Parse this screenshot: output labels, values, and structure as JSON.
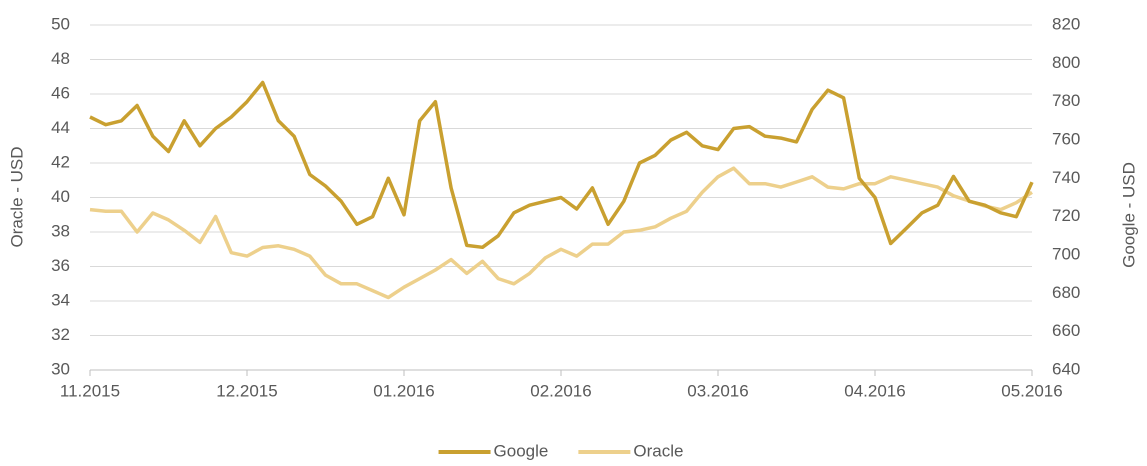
{
  "chart_data": {
    "type": "line",
    "y_label": "Oracle - USD",
    "y2_label": "Google - USD",
    "categories": [
      "11.2015",
      null,
      null,
      null,
      null,
      null,
      null,
      null,
      null,
      null,
      "12.2015",
      null,
      null,
      null,
      null,
      null,
      null,
      null,
      null,
      null,
      "01.2016",
      null,
      null,
      null,
      null,
      null,
      null,
      null,
      null,
      null,
      "02.2016",
      null,
      null,
      null,
      null,
      null,
      null,
      null,
      null,
      null,
      "03.2016",
      null,
      null,
      null,
      null,
      null,
      null,
      null,
      null,
      null,
      "04.2016",
      null,
      null,
      null,
      null,
      null,
      null,
      null,
      null,
      null,
      "05.2016"
    ],
    "series": [
      {
        "name": "Google",
        "color": "#c9a030",
        "axis": "y2",
        "values": [
          772,
          768,
          770,
          778,
          762,
          754,
          770,
          757,
          766,
          772,
          780,
          790,
          770,
          762,
          742,
          736,
          728,
          716,
          720,
          740,
          721,
          770,
          780,
          735,
          705,
          704,
          710,
          722,
          726,
          728,
          730,
          724,
          735,
          716,
          728,
          748,
          752,
          760,
          764,
          757,
          755,
          766,
          767,
          762,
          761,
          759,
          776,
          786,
          782,
          740,
          730,
          706,
          714,
          722,
          726,
          741,
          728,
          726,
          722,
          720,
          738
        ]
      },
      {
        "name": "Oracle",
        "color": "#edd08c",
        "values": [
          39.3,
          39.2,
          39.2,
          38.0,
          39.1,
          38.7,
          38.1,
          37.4,
          38.9,
          36.8,
          36.6,
          37.1,
          37.2,
          37.0,
          36.6,
          35.5,
          35.0,
          35.0,
          34.6,
          34.2,
          34.8,
          35.3,
          35.8,
          36.4,
          35.6,
          36.3,
          35.3,
          35.0,
          35.6,
          36.5,
          37.0,
          36.6,
          37.3,
          37.3,
          38.0,
          38.1,
          38.3,
          38.8,
          39.2,
          40.3,
          41.2,
          41.7,
          40.8,
          40.8,
          40.6,
          40.9,
          41.2,
          40.6,
          40.5,
          40.8,
          40.8,
          41.2,
          41.0,
          40.8,
          40.6,
          40.1,
          39.8,
          39.5,
          39.3,
          39.7,
          40.3
        ]
      }
    ],
    "ylim": [
      30,
      50
    ],
    "yticks": [
      30,
      32,
      34,
      36,
      38,
      40,
      42,
      44,
      46,
      48,
      50
    ],
    "y2lim": [
      640,
      820
    ],
    "y2ticks": [
      640,
      660,
      680,
      700,
      720,
      740,
      760,
      780,
      800,
      820
    ],
    "grid": true,
    "legend": "bottom"
  }
}
